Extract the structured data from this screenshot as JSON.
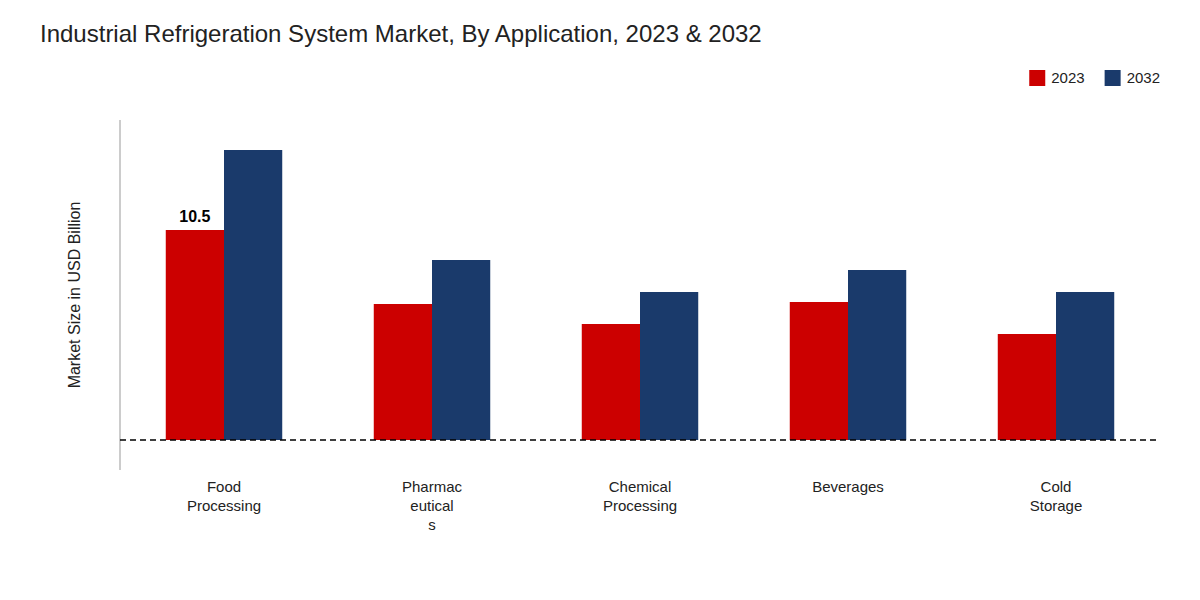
{
  "chart_data": {
    "type": "bar",
    "title": "Industrial Refrigeration System Market, By Application, 2023 & 2032",
    "y_label": "Market Size in USD Billion",
    "categories": [
      "Food\nProcessing",
      "Pharmac\neutical\ns",
      "Chemical\nProcessing",
      "Beverages",
      "Cold\nStorage"
    ],
    "series": [
      {
        "name": "2023",
        "color": "#cc0000",
        "values": [
          10.5,
          6.8,
          5.8,
          6.9,
          5.3
        ]
      },
      {
        "name": "2032",
        "color": "#1a3a6b",
        "values": [
          14.5,
          9.0,
          7.4,
          8.5,
          7.4
        ]
      }
    ],
    "annotations": [
      {
        "text": "10.5",
        "series": 0,
        "category": 0
      }
    ],
    "ylim": [
      -1.5,
      16
    ],
    "tick_labels": "x",
    "grid": false,
    "legend": "top-right"
  }
}
